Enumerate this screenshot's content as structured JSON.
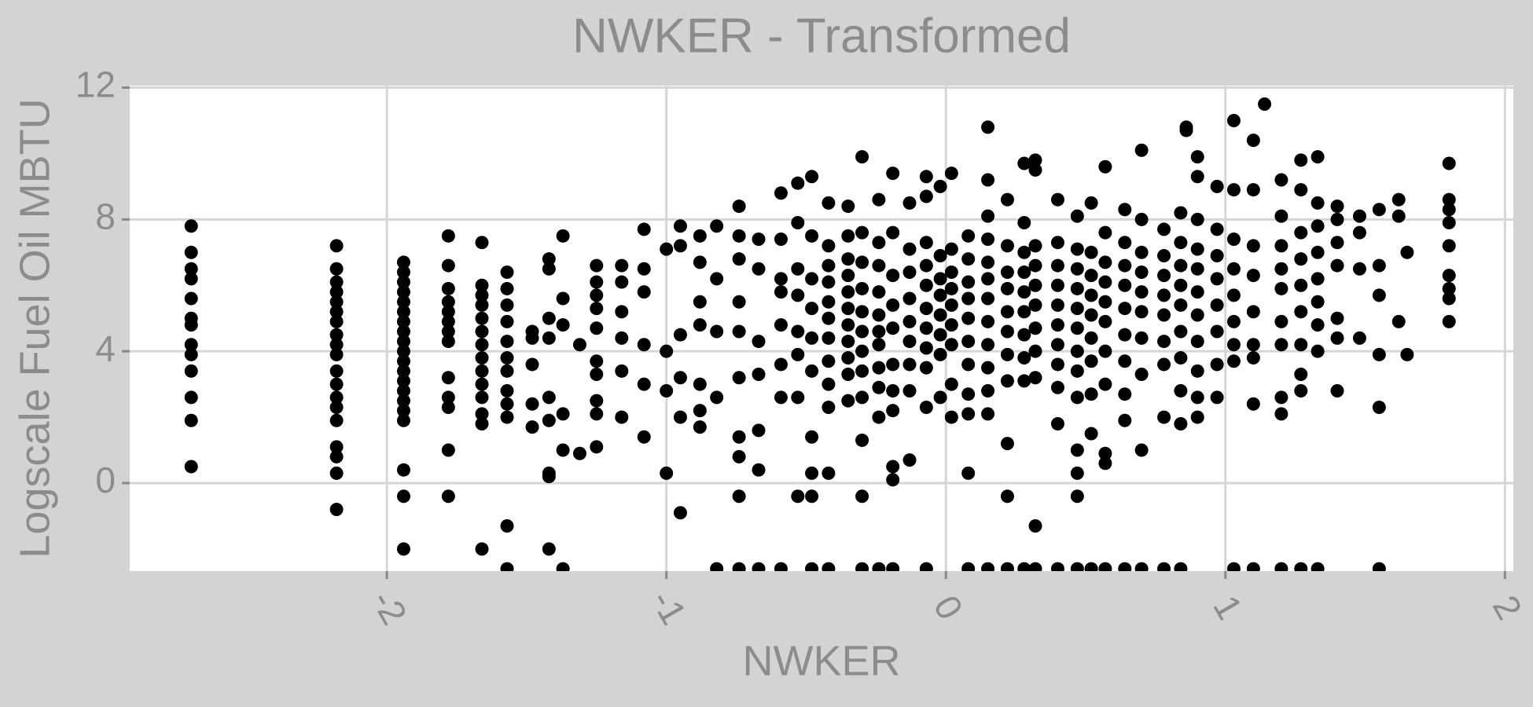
{
  "chart_data": {
    "type": "scatter",
    "title": "NWKER - Transformed",
    "x_label": "NWKER",
    "y_label": "Logscale Fuel Oil MBTU",
    "color": "#000000",
    "grid": true,
    "xlim": [
      -2.92,
      2.03
    ],
    "ylim": [
      -2.67,
      12.06
    ],
    "xticks": [
      -2,
      -1,
      0,
      1,
      2
    ],
    "yticks": [
      0,
      4,
      8,
      12
    ],
    "x": [
      -2.7,
      -2.7,
      -2.7,
      -2.7,
      -2.7,
      -2.7,
      -2.7,
      -2.7,
      -2.7,
      -2.7,
      -2.7,
      -2.7,
      -2.7,
      -2.18,
      -2.18,
      -2.18,
      -2.18,
      -2.18,
      -2.18,
      -2.18,
      -2.18,
      -2.18,
      -2.18,
      -2.18,
      -2.18,
      -2.18,
      -2.18,
      -2.18,
      -2.18,
      -2.18,
      -2.18,
      -2.18,
      -1.94,
      -1.94,
      -1.94,
      -1.94,
      -1.94,
      -1.94,
      -1.94,
      -1.94,
      -1.94,
      -1.94,
      -1.94,
      -1.94,
      -1.94,
      -1.94,
      -1.94,
      -1.94,
      -1.94,
      -1.94,
      -1.94,
      -1.94,
      -1.78,
      -1.78,
      -1.78,
      -1.78,
      -1.78,
      -1.78,
      -1.78,
      -1.78,
      -1.78,
      -1.78,
      -1.78,
      -1.78,
      -1.78,
      -1.66,
      -1.66,
      -1.66,
      -1.66,
      -1.66,
      -1.66,
      -1.66,
      -1.66,
      -1.66,
      -1.66,
      -1.66,
      -1.66,
      -1.66,
      -1.66,
      -1.57,
      -1.57,
      -1.57,
      -1.57,
      -1.57,
      -1.57,
      -1.57,
      -1.57,
      -1.57,
      -1.57,
      -1.57,
      -1.57,
      -1.48,
      -1.48,
      -1.48,
      -1.48,
      -1.48,
      -1.42,
      -1.42,
      -1.42,
      -1.42,
      -1.42,
      -1.42,
      -1.42,
      -1.42,
      -1.42,
      -1.37,
      -1.37,
      -1.37,
      -1.37,
      -1.37,
      -1.37,
      -1.31,
      -1.31,
      -1.25,
      -1.25,
      -1.25,
      -1.25,
      -1.25,
      -1.25,
      -1.25,
      -1.25,
      -1.25,
      -1.25,
      -1.16,
      -1.16,
      -1.16,
      -1.16,
      -1.16,
      -1.16,
      -1.08,
      -1.08,
      -1.08,
      -1.08,
      -1.08,
      -1.08,
      -1.0,
      -1.0,
      -1.0,
      -1.0,
      -0.95,
      -0.95,
      -0.95,
      -0.95,
      -0.95,
      -0.95,
      -0.88,
      -0.88,
      -0.88,
      -0.88,
      -0.88,
      -0.88,
      -0.88,
      -0.82,
      -0.82,
      -0.82,
      -0.82,
      -0.82,
      -0.74,
      -0.74,
      -0.74,
      -0.74,
      -0.74,
      -0.74,
      -0.74,
      -0.74,
      -0.74,
      -0.74,
      -0.67,
      -0.67,
      -0.67,
      -0.67,
      -0.67,
      -0.67,
      -0.67,
      -0.59,
      -0.59,
      -0.59,
      -0.59,
      -0.59,
      -0.59,
      -0.59,
      -0.59,
      -0.53,
      -0.53,
      -0.53,
      -0.53,
      -0.53,
      -0.53,
      -0.53,
      -0.53,
      -0.48,
      -0.48,
      -0.48,
      -0.48,
      -0.48,
      -0.48,
      -0.48,
      -0.48,
      -0.48,
      -0.48,
      -0.42,
      -0.42,
      -0.42,
      -0.42,
      -0.42,
      -0.42,
      -0.42,
      -0.42,
      -0.42,
      -0.42,
      -0.42,
      -0.42,
      -0.35,
      -0.35,
      -0.35,
      -0.35,
      -0.35,
      -0.35,
      -0.35,
      -0.35,
      -0.35,
      -0.35,
      -0.35,
      -0.3,
      -0.3,
      -0.3,
      -0.3,
      -0.3,
      -0.3,
      -0.3,
      -0.3,
      -0.3,
      -0.3,
      -0.3,
      -0.3,
      -0.24,
      -0.24,
      -0.24,
      -0.24,
      -0.24,
      -0.24,
      -0.24,
      -0.24,
      -0.24,
      -0.24,
      -0.24,
      -0.19,
      -0.19,
      -0.19,
      -0.19,
      -0.19,
      -0.19,
      -0.19,
      -0.19,
      -0.19,
      -0.19,
      -0.19,
      -0.13,
      -0.13,
      -0.13,
      -0.13,
      -0.13,
      -0.13,
      -0.13,
      -0.13,
      -0.13,
      -0.07,
      -0.07,
      -0.07,
      -0.07,
      -0.07,
      -0.07,
      -0.07,
      -0.07,
      -0.07,
      -0.07,
      -0.07,
      -0.02,
      -0.02,
      -0.02,
      -0.02,
      -0.02,
      -0.02,
      -0.02,
      -0.02,
      0.02,
      0.02,
      0.02,
      0.02,
      0.02,
      0.02,
      0.02,
      0.02,
      0.02,
      0.08,
      0.08,
      0.08,
      0.08,
      0.08,
      0.08,
      0.08,
      0.08,
      0.08,
      0.08,
      0.08,
      0.15,
      0.15,
      0.15,
      0.15,
      0.15,
      0.15,
      0.15,
      0.15,
      0.15,
      0.15,
      0.15,
      0.15,
      0.15,
      0.22,
      0.22,
      0.22,
      0.22,
      0.22,
      0.22,
      0.22,
      0.22,
      0.22,
      0.22,
      0.22,
      0.28,
      0.28,
      0.28,
      0.28,
      0.28,
      0.28,
      0.28,
      0.28,
      0.28,
      0.28,
      0.32,
      0.32,
      0.32,
      0.32,
      0.32,
      0.32,
      0.32,
      0.32,
      0.32,
      0.32,
      0.32,
      0.4,
      0.4,
      0.4,
      0.4,
      0.4,
      0.4,
      0.4,
      0.4,
      0.4,
      0.4,
      0.4,
      0.47,
      0.47,
      0.47,
      0.47,
      0.47,
      0.47,
      0.47,
      0.47,
      0.47,
      0.47,
      0.47,
      0.47,
      0.47,
      0.52,
      0.52,
      0.52,
      0.52,
      0.52,
      0.52,
      0.52,
      0.52,
      0.52,
      0.52,
      0.57,
      0.57,
      0.57,
      0.57,
      0.57,
      0.57,
      0.57,
      0.57,
      0.57,
      0.57,
      0.57,
      0.64,
      0.64,
      0.64,
      0.64,
      0.64,
      0.64,
      0.64,
      0.64,
      0.64,
      0.64,
      0.7,
      0.7,
      0.7,
      0.7,
      0.7,
      0.7,
      0.7,
      0.7,
      0.7,
      0.7,
      0.78,
      0.78,
      0.78,
      0.78,
      0.78,
      0.78,
      0.78,
      0.78,
      0.78,
      0.84,
      0.84,
      0.84,
      0.84,
      0.84,
      0.84,
      0.84,
      0.84,
      0.84,
      0.84,
      0.9,
      0.9,
      0.9,
      0.9,
      0.9,
      0.9,
      0.9,
      0.9,
      0.9,
      0.9,
      0.9,
      0.86,
      0.86,
      0.97,
      0.97,
      0.97,
      0.97,
      0.97,
      0.97,
      0.97,
      0.97,
      1.03,
      1.03,
      1.03,
      1.03,
      1.03,
      1.03,
      1.03,
      1.03,
      1.03,
      1.1,
      1.1,
      1.1,
      1.1,
      1.1,
      1.1,
      1.1,
      1.1,
      1.1,
      1.14,
      1.2,
      1.2,
      1.2,
      1.2,
      1.2,
      1.2,
      1.2,
      1.2,
      1.2,
      1.2,
      1.27,
      1.27,
      1.27,
      1.27,
      1.27,
      1.27,
      1.27,
      1.27,
      1.27,
      1.27,
      1.33,
      1.33,
      1.33,
      1.33,
      1.33,
      1.33,
      1.33,
      1.33,
      1.33,
      1.4,
      1.4,
      1.4,
      1.4,
      1.4,
      1.4,
      1.4,
      1.48,
      1.48,
      1.48,
      1.48,
      1.55,
      1.55,
      1.55,
      1.55,
      1.55,
      1.55,
      1.62,
      1.62,
      1.62,
      1.65,
      1.65,
      1.8,
      1.8,
      1.8,
      1.8,
      1.8,
      1.8,
      1.8,
      1.8,
      1.8
    ],
    "values": [
      7.8,
      7.0,
      6.5,
      6.2,
      5.6,
      5.0,
      4.8,
      4.2,
      3.9,
      3.4,
      2.6,
      1.9,
      0.5,
      7.2,
      6.5,
      6.1,
      5.8,
      5.5,
      5.2,
      4.9,
      4.5,
      4.2,
      3.9,
      3.4,
      3.0,
      2.6,
      2.3,
      1.9,
      1.1,
      0.8,
      0.3,
      -0.8,
      6.7,
      6.4,
      6.1,
      5.8,
      5.5,
      5.2,
      4.9,
      4.6,
      4.3,
      4.0,
      3.7,
      3.4,
      3.1,
      2.8,
      2.5,
      2.2,
      1.9,
      0.4,
      -0.4,
      -2.0,
      7.5,
      6.6,
      5.9,
      5.5,
      5.2,
      4.9,
      4.6,
      4.3,
      3.2,
      2.6,
      2.3,
      1.0,
      -0.4,
      7.3,
      6.0,
      5.7,
      5.4,
      5.0,
      4.6,
      4.2,
      3.8,
      3.4,
      3.0,
      2.6,
      2.1,
      1.8,
      -2.0,
      6.4,
      5.9,
      5.4,
      4.9,
      4.3,
      3.8,
      3.4,
      2.8,
      2.4,
      2.0,
      -1.3,
      -2.6,
      4.6,
      4.4,
      3.6,
      2.4,
      1.7,
      6.8,
      6.5,
      5.0,
      4.4,
      2.6,
      1.9,
      0.3,
      0.2,
      -2.0,
      7.5,
      5.6,
      4.8,
      2.1,
      1.0,
      -2.6,
      4.2,
      0.9,
      6.6,
      6.1,
      5.7,
      5.3,
      4.7,
      3.7,
      3.3,
      2.5,
      2.1,
      1.1,
      6.6,
      6.1,
      5.2,
      4.4,
      3.4,
      2.0,
      7.7,
      6.5,
      5.8,
      4.2,
      3.0,
      1.4,
      7.1,
      4.0,
      2.8,
      0.3,
      7.8,
      7.2,
      4.5,
      3.2,
      2.0,
      -0.9,
      7.5,
      6.7,
      5.5,
      4.8,
      3.0,
      2.2,
      1.7,
      7.8,
      6.2,
      4.6,
      2.6,
      -2.6,
      8.4,
      7.5,
      6.8,
      5.5,
      4.6,
      3.2,
      1.4,
      0.8,
      -0.4,
      -2.6,
      7.4,
      6.5,
      4.3,
      3.3,
      1.6,
      0.4,
      -2.6,
      8.8,
      7.4,
      6.2,
      5.8,
      4.8,
      3.6,
      2.6,
      -2.6,
      9.1,
      7.9,
      6.5,
      5.7,
      4.6,
      3.9,
      2.6,
      -0.4,
      9.3,
      7.5,
      6.2,
      5.3,
      4.4,
      3.4,
      1.4,
      0.3,
      -0.4,
      -2.6,
      8.5,
      7.2,
      6.6,
      6.1,
      5.5,
      5.0,
      4.4,
      3.7,
      3.0,
      2.3,
      0.3,
      -2.6,
      8.4,
      7.5,
      6.8,
      6.3,
      5.8,
      5.3,
      4.8,
      4.3,
      3.8,
      3.3,
      2.5,
      9.9,
      7.6,
      6.7,
      5.9,
      5.2,
      4.6,
      4.0,
      3.4,
      2.6,
      1.3,
      -0.4,
      -2.6,
      8.6,
      7.3,
      6.6,
      5.8,
      5.1,
      4.6,
      4.2,
      3.5,
      2.9,
      2.0,
      -2.6,
      9.4,
      7.6,
      6.3,
      5.4,
      4.7,
      3.6,
      2.8,
      2.2,
      0.5,
      0.1,
      -2.6,
      8.5,
      7.1,
      6.4,
      5.6,
      4.9,
      4.3,
      3.6,
      2.8,
      0.7,
      9.3,
      8.7,
      7.3,
      6.6,
      6.0,
      5.3,
      4.7,
      4.1,
      3.5,
      2.3,
      -2.6,
      9.0,
      6.9,
      6.2,
      5.7,
      5.1,
      4.5,
      3.9,
      2.6,
      9.4,
      7.1,
      6.4,
      5.9,
      5.4,
      4.8,
      4.2,
      3.0,
      2.0,
      7.5,
      6.8,
      6.1,
      5.6,
      5.0,
      4.3,
      3.6,
      2.7,
      2.1,
      0.3,
      -2.6,
      10.8,
      9.2,
      8.1,
      7.4,
      6.7,
      6.2,
      5.6,
      4.9,
      4.2,
      3.5,
      2.8,
      2.1,
      -2.6,
      8.6,
      7.2,
      6.4,
      5.9,
      5.2,
      4.6,
      3.9,
      3.1,
      1.2,
      -0.4,
      -2.6,
      9.7,
      7.9,
      7.0,
      6.4,
      5.8,
      5.2,
      4.5,
      3.8,
      3.1,
      -2.6,
      9.8,
      9.5,
      7.2,
      6.6,
      6.0,
      5.4,
      4.7,
      4.0,
      3.2,
      -1.3,
      -2.6,
      8.6,
      7.3,
      6.6,
      6.0,
      5.4,
      4.8,
      4.2,
      3.6,
      2.9,
      1.8,
      -2.6,
      8.1,
      7.1,
      6.5,
      5.9,
      5.3,
      4.7,
      4.0,
      3.4,
      2.6,
      1.0,
      0.3,
      -0.4,
      -2.6,
      8.5,
      7.0,
      6.3,
      5.7,
      5.1,
      4.4,
      3.7,
      2.7,
      1.5,
      -2.6,
      9.6,
      7.6,
      6.7,
      6.1,
      5.5,
      4.9,
      4.0,
      3.0,
      0.9,
      0.6,
      -2.6,
      8.3,
      7.3,
      6.6,
      6.0,
      5.3,
      4.5,
      3.7,
      2.7,
      1.9,
      -2.6,
      10.1,
      8.0,
      7.0,
      6.4,
      5.8,
      5.2,
      4.4,
      3.3,
      1.0,
      -2.6,
      7.7,
      6.9,
      6.3,
      5.7,
      5.1,
      4.3,
      3.6,
      2.0,
      -2.6,
      8.2,
      7.3,
      6.6,
      6.0,
      5.4,
      4.6,
      3.8,
      2.8,
      1.8,
      -2.6,
      9.9,
      9.3,
      8.0,
      7.1,
      6.5,
      5.8,
      5.1,
      4.3,
      3.4,
      2.6,
      2.0,
      10.8,
      10.7,
      9.0,
      7.7,
      6.9,
      6.2,
      5.4,
      4.6,
      3.6,
      2.6,
      11.0,
      8.9,
      7.4,
      6.5,
      5.7,
      4.9,
      4.2,
      3.7,
      -2.6,
      10.4,
      8.9,
      7.2,
      6.3,
      5.2,
      4.2,
      3.8,
      2.4,
      -2.6,
      11.5,
      9.2,
      8.1,
      7.2,
      6.5,
      5.9,
      4.9,
      4.2,
      2.6,
      2.1,
      -2.6,
      9.8,
      8.9,
      7.6,
      6.8,
      6.0,
      5.2,
      4.2,
      3.3,
      2.8,
      -2.6,
      9.9,
      8.5,
      7.8,
      7.0,
      6.2,
      5.5,
      4.8,
      4.0,
      -2.6,
      8.4,
      8.0,
      7.3,
      6.6,
      5.0,
      4.4,
      2.8,
      8.1,
      7.6,
      6.5,
      4.4,
      8.3,
      6.6,
      5.7,
      3.9,
      2.3,
      -2.6,
      8.6,
      8.1,
      4.9,
      7.0,
      3.9,
      9.7,
      8.6,
      8.3,
      7.9,
      7.2,
      6.3,
      5.9,
      5.6,
      4.9
    ]
  }
}
